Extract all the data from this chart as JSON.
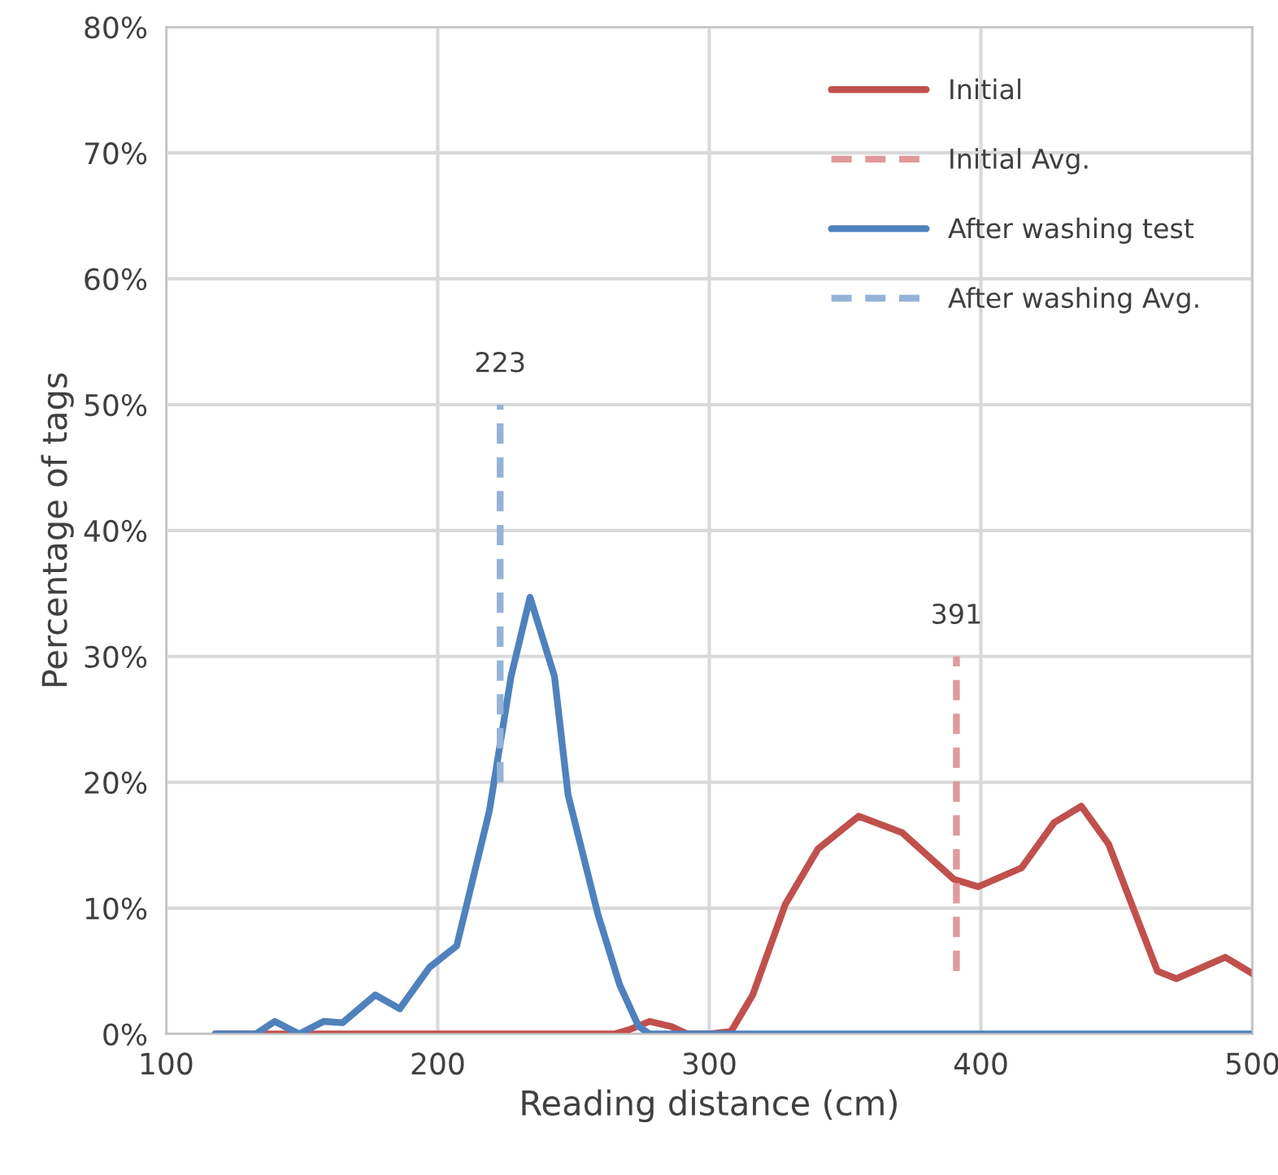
{
  "chart_data": {
    "type": "line",
    "xlabel": "Reading distance (cm)",
    "ylabel": "Percentage of tags",
    "xlim": [
      100,
      500
    ],
    "xticks": [
      100,
      200,
      300,
      400,
      500
    ],
    "ylim": [
      0,
      80
    ],
    "yticks": [
      {
        "value": 0,
        "label": "0%"
      },
      {
        "value": 10,
        "label": "10%"
      },
      {
        "value": 20,
        "label": "20%"
      },
      {
        "value": 30,
        "label": "30%"
      },
      {
        "value": 40,
        "label": "40%"
      },
      {
        "value": 50,
        "label": "50%"
      },
      {
        "value": 60,
        "label": "60%"
      },
      {
        "value": 70,
        "label": "70%"
      },
      {
        "value": 80,
        "label": "80%"
      }
    ],
    "grid": true,
    "legend": "top right",
    "marker": "none",
    "series": [
      {
        "name": "Initial",
        "color": "#c0504d",
        "line_style": "solid",
        "x": [
          118,
          250,
          265,
          270,
          278,
          286,
          292,
          300,
          308,
          316,
          328,
          340,
          355,
          371,
          390,
          399,
          415,
          427,
          437,
          447,
          465,
          472,
          490,
          500
        ],
        "values": [
          0,
          0,
          0,
          0.3,
          1.0,
          0.6,
          0,
          0,
          0.2,
          3.1,
          10.3,
          14.7,
          17.3,
          16.0,
          12.3,
          11.7,
          13.2,
          16.8,
          18.1,
          15.1,
          5.0,
          4.4,
          6.1,
          4.8
        ]
      },
      {
        "name": "Initial Avg.",
        "color": "#e09a99",
        "line_style": "dashed",
        "x": [
          391,
          391
        ],
        "values": [
          5,
          30
        ]
      },
      {
        "name": "After washing test",
        "color": "#4f81bd",
        "line_style": "solid",
        "x": [
          118,
          133,
          140,
          149,
          158,
          165,
          177,
          186,
          197,
          207,
          219,
          227,
          234,
          243,
          248,
          259,
          267,
          274,
          278,
          500
        ],
        "values": [
          0,
          0,
          1.0,
          0,
          1.0,
          0.9,
          3.1,
          2.0,
          5.3,
          7.0,
          17.7,
          28.4,
          34.7,
          28.4,
          19,
          9.5,
          3.9,
          0.6,
          0,
          0
        ]
      },
      {
        "name": "After washing Avg.",
        "color": "#95b3d7",
        "line_style": "dashed",
        "x": [
          223,
          223
        ],
        "values": [
          20,
          50
        ]
      }
    ],
    "annotations": [
      {
        "text": "223",
        "x": 223,
        "y": 50
      },
      {
        "text": "391",
        "x": 391,
        "y": 30
      }
    ]
  }
}
